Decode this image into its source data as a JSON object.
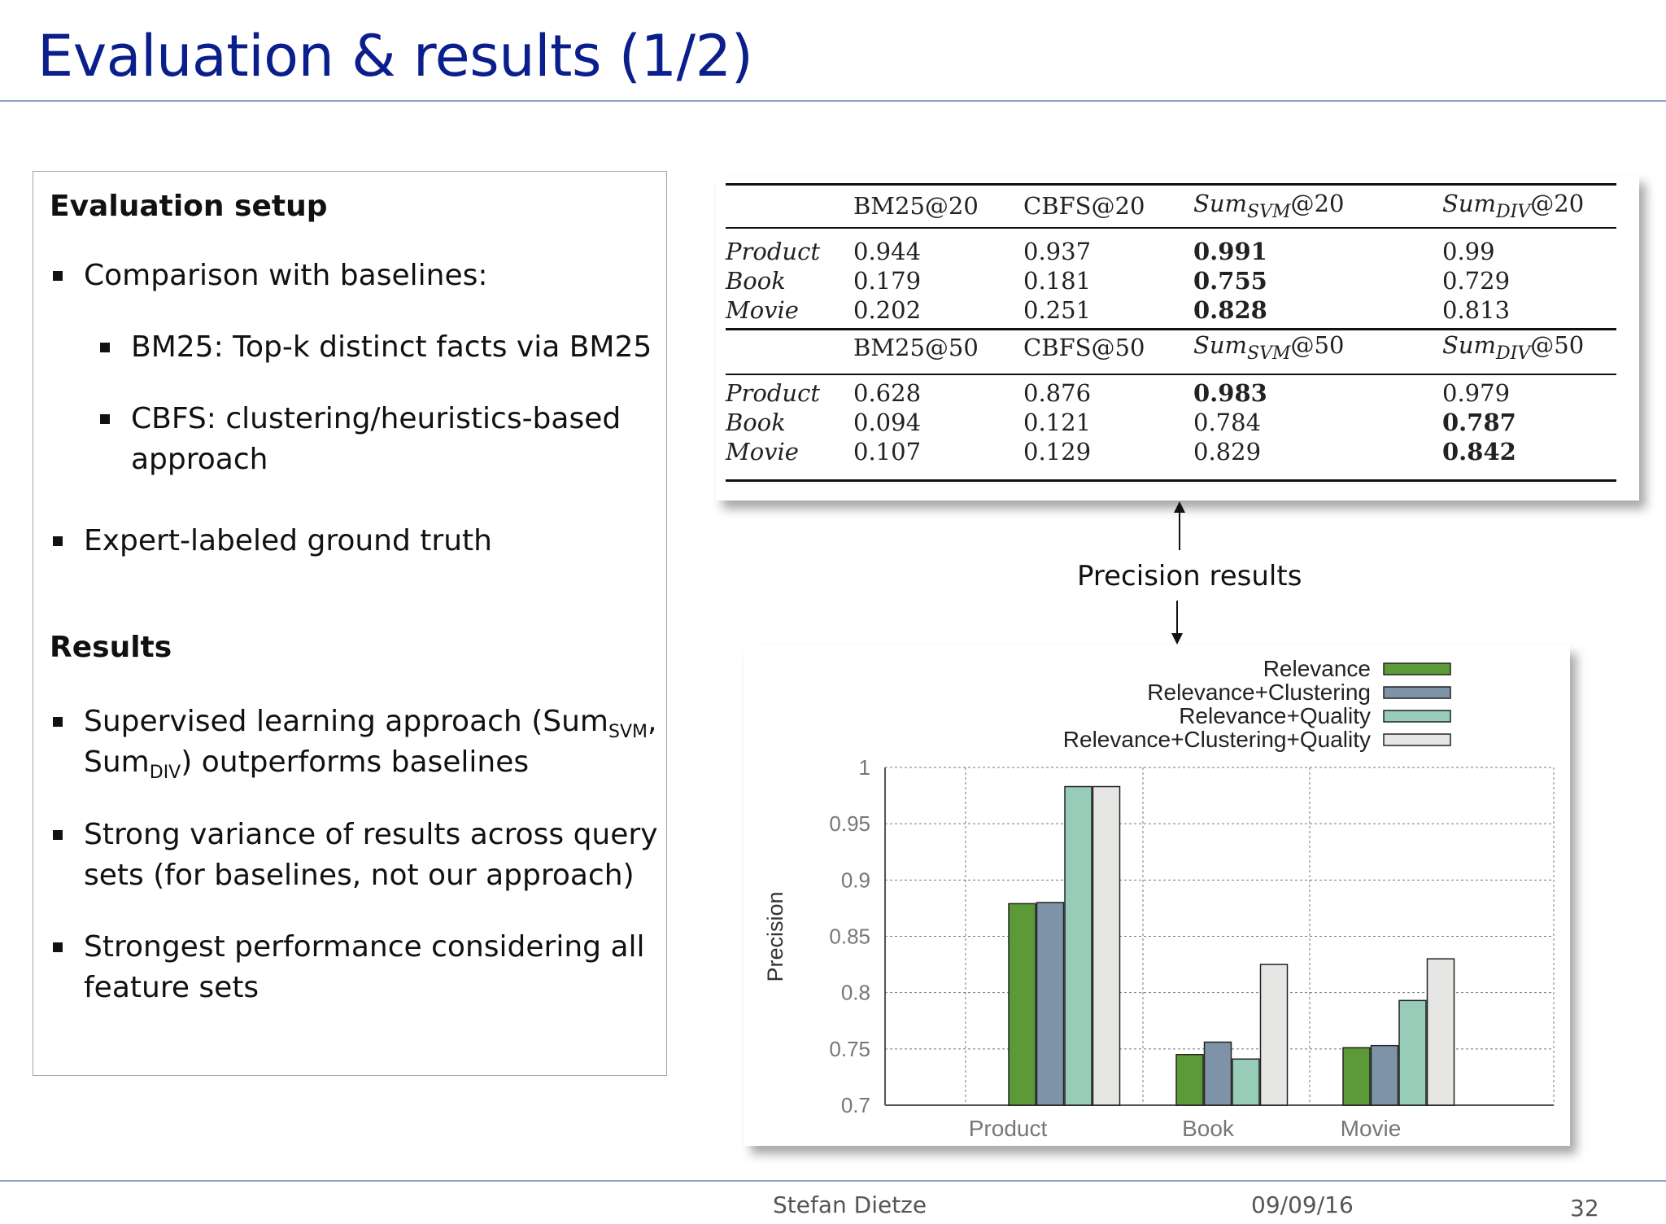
{
  "slide": {
    "title": "Evaluation & results (1/2)",
    "footer": {
      "author": "Stefan Dietze",
      "date": "09/09/16",
      "page": "32"
    }
  },
  "left": {
    "setup_heading": "Evaluation setup",
    "bullet_comparison": "Comparison with baselines:",
    "sub_bm25": "BM25: Top-k distinct facts via BM25",
    "sub_cbfs_1": "CBFS: clustering/heuristics-based",
    "sub_cbfs_2": "approach",
    "bullet_expert": "Expert-labeled ground truth",
    "results_heading": "Results",
    "r1_a": "Supervised learning approach (Sum",
    "r1_svm": "SVM",
    "r1_comma": ",",
    "r1_b": "Sum",
    "r1_div": "DIV",
    "r1_c": ") outperforms baselines",
    "r2_1": "Strong variance of results across query",
    "r2_2": "sets (for baselines, not our approach)",
    "r3_1": "Strongest performance considering all",
    "r3_2": "feature sets"
  },
  "table": {
    "block20": {
      "headers": [
        "BM25@20",
        "CBFS@20",
        "Sum",
        "SVM",
        "@20",
        "Sum",
        "DIV",
        "@20"
      ],
      "rows": [
        {
          "label": "Product",
          "v": [
            "0.944",
            "0.937",
            "0.991",
            "0.99"
          ]
        },
        {
          "label": "Book",
          "v": [
            "0.179",
            "0.181",
            "0.755",
            "0.729"
          ]
        },
        {
          "label": "Movie",
          "v": [
            "0.202",
            "0.251",
            "0.828",
            "0.813"
          ]
        }
      ]
    },
    "block50": {
      "headers": [
        "BM25@50",
        "CBFS@50",
        "Sum",
        "SVM",
        "@50",
        "Sum",
        "DIV",
        "@50"
      ],
      "rows": [
        {
          "label": "Product",
          "v": [
            "0.628",
            "0.876",
            "0.983",
            "0.979"
          ]
        },
        {
          "label": "Book",
          "v": [
            "0.094",
            "0.121",
            "0.784",
            "0.787"
          ]
        },
        {
          "label": "Movie",
          "v": [
            "0.107",
            "0.129",
            "0.829",
            "0.842"
          ]
        }
      ]
    }
  },
  "precision_label": "Precision results",
  "chart_data": {
    "type": "bar",
    "categories": [
      "Product",
      "Book",
      "Movie"
    ],
    "series": [
      {
        "name": "Relevance",
        "color": "#5b9a36",
        "values": [
          0.879,
          0.745,
          0.751
        ]
      },
      {
        "name": "Relevance+Clustering",
        "color": "#7f93a8",
        "values": [
          0.88,
          0.756,
          0.753
        ]
      },
      {
        "name": "Relevance+Quality",
        "color": "#97cdb8",
        "values": [
          0.983,
          0.741,
          0.793
        ]
      },
      {
        "name": "Relevance+Clustering+Quality",
        "color": "#e6e6e4",
        "values": [
          0.983,
          0.825,
          0.83
        ]
      }
    ],
    "ylabel": "Precision",
    "ylim": [
      0.7,
      1.0
    ],
    "yticks": [
      "0.7",
      "0.75",
      "0.8",
      "0.85",
      "0.9",
      "0.95",
      "1"
    ],
    "grid": true,
    "legend": "top-right"
  }
}
